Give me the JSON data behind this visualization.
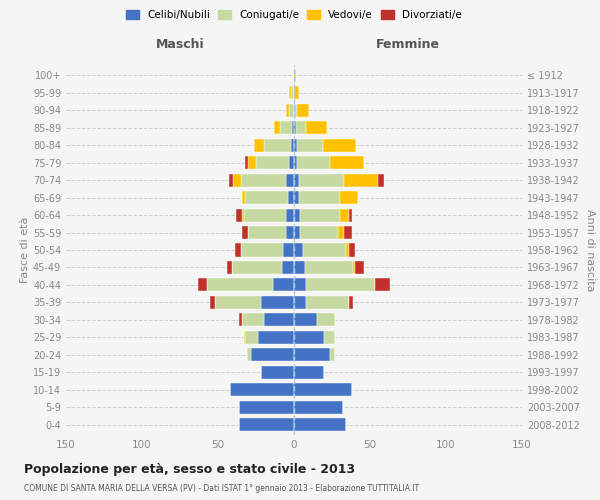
{
  "age_groups": [
    "0-4",
    "5-9",
    "10-14",
    "15-19",
    "20-24",
    "25-29",
    "30-34",
    "35-39",
    "40-44",
    "45-49",
    "50-54",
    "55-59",
    "60-64",
    "65-69",
    "70-74",
    "75-79",
    "80-84",
    "85-89",
    "90-94",
    "95-99",
    "100+"
  ],
  "birth_years": [
    "2008-2012",
    "2003-2007",
    "1998-2002",
    "1993-1997",
    "1988-1992",
    "1983-1987",
    "1978-1982",
    "1973-1977",
    "1968-1972",
    "1963-1967",
    "1958-1962",
    "1953-1957",
    "1948-1952",
    "1943-1947",
    "1938-1942",
    "1933-1937",
    "1928-1932",
    "1923-1927",
    "1918-1922",
    "1913-1917",
    "≤ 1912"
  ],
  "male": {
    "celibi": [
      36,
      36,
      42,
      22,
      28,
      24,
      20,
      22,
      14,
      8,
      7,
      5,
      5,
      4,
      5,
      3,
      2,
      1,
      0,
      0,
      0
    ],
    "coniugati": [
      0,
      0,
      0,
      0,
      3,
      8,
      14,
      30,
      43,
      33,
      28,
      25,
      28,
      28,
      30,
      22,
      18,
      8,
      3,
      2,
      0
    ],
    "vedovi": [
      0,
      0,
      0,
      0,
      0,
      1,
      0,
      0,
      0,
      0,
      0,
      0,
      1,
      2,
      5,
      5,
      6,
      4,
      2,
      1,
      0
    ],
    "divorziati": [
      0,
      0,
      0,
      0,
      0,
      0,
      2,
      3,
      6,
      3,
      4,
      4,
      4,
      0,
      3,
      2,
      0,
      0,
      0,
      0,
      0
    ]
  },
  "female": {
    "nubili": [
      34,
      32,
      38,
      20,
      24,
      20,
      15,
      8,
      8,
      7,
      6,
      4,
      4,
      3,
      3,
      2,
      2,
      1,
      0,
      0,
      0
    ],
    "coniugate": [
      0,
      0,
      0,
      0,
      3,
      7,
      12,
      28,
      45,
      32,
      28,
      25,
      26,
      27,
      30,
      22,
      17,
      7,
      2,
      0,
      0
    ],
    "vedove": [
      0,
      0,
      0,
      0,
      0,
      0,
      0,
      0,
      0,
      1,
      2,
      4,
      6,
      12,
      22,
      22,
      22,
      14,
      8,
      3,
      1
    ],
    "divorziate": [
      0,
      0,
      0,
      0,
      0,
      0,
      0,
      3,
      10,
      6,
      4,
      5,
      2,
      0,
      4,
      0,
      0,
      0,
      0,
      0,
      0
    ]
  },
  "colors": {
    "celibi": "#4472c4",
    "coniugati": "#c5d9a0",
    "vedovi": "#ffc000",
    "divorziati": "#c0312b"
  },
  "xlim": 150,
  "title": "Popolazione per età, sesso e stato civile - 2013",
  "subtitle": "COMUNE DI SANTA MARIA DELLA VERSA (PV) - Dati ISTAT 1° gennaio 2013 - Elaborazione TUTTITALIA.IT",
  "ylabel_left": "Fasce di età",
  "ylabel_right": "Anni di nascita",
  "xlabel_male": "Maschi",
  "xlabel_female": "Femmine",
  "legend_labels": [
    "Celibi/Nubili",
    "Coniugati/e",
    "Vedovi/e",
    "Divorziati/e"
  ],
  "background_color": "#f5f5f5"
}
